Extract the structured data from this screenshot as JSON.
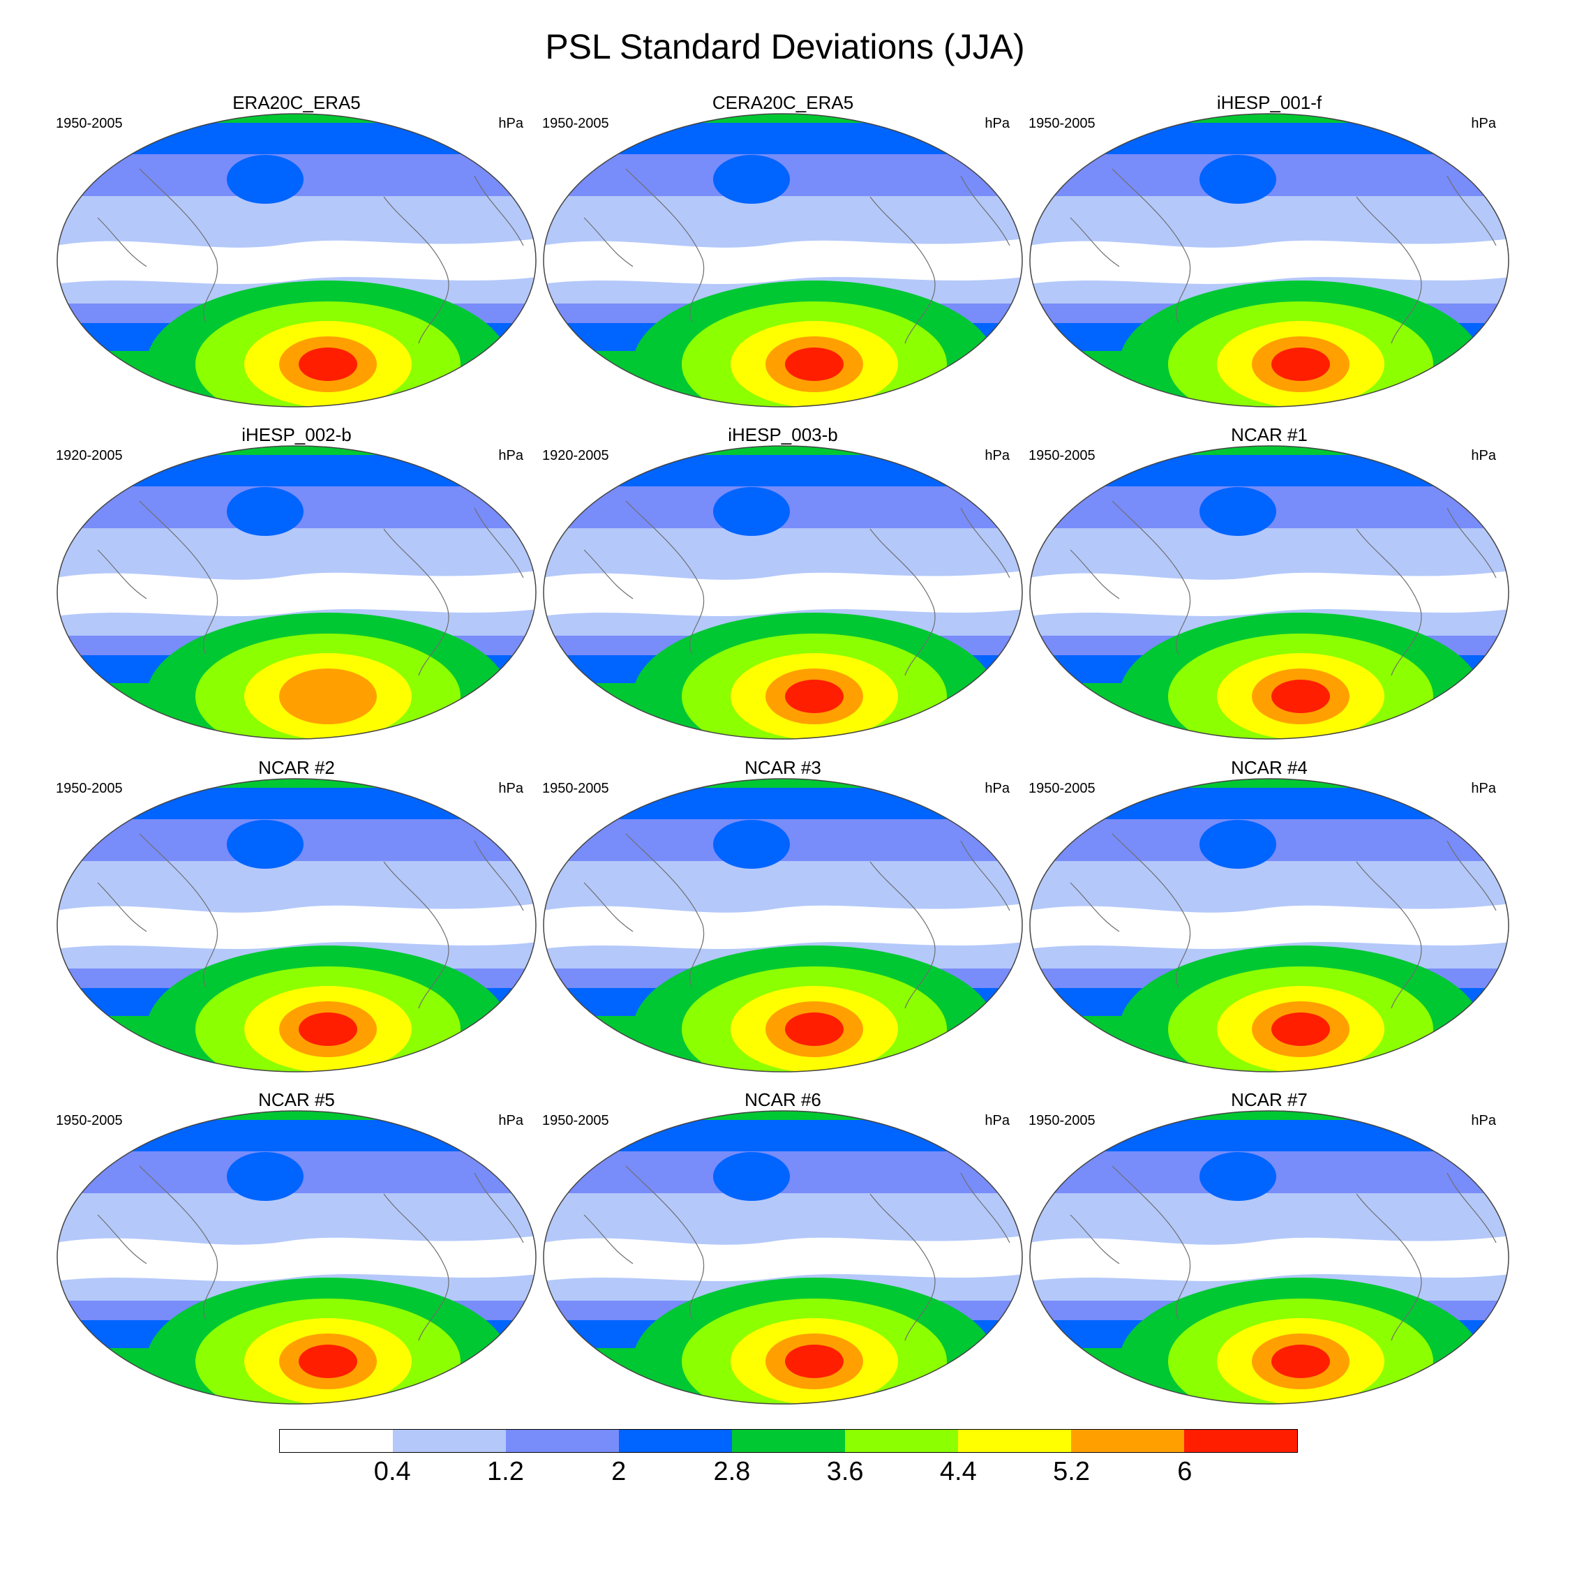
{
  "figure": {
    "title": "PSL Standard Deviations (JJA)"
  },
  "panels": [
    {
      "title": "ERA20C_ERA5",
      "period": "1950-2005",
      "units": "hPa",
      "peak_level": 9
    },
    {
      "title": "CERA20C_ERA5",
      "period": "1950-2005",
      "units": "hPa",
      "peak_level": 9
    },
    {
      "title": "iHESP_001-f",
      "period": "1950-2005",
      "units": "hPa",
      "peak_level": 9
    },
    {
      "title": "iHESP_002-b",
      "period": "1920-2005",
      "units": "hPa",
      "peak_level": 7
    },
    {
      "title": "iHESP_003-b",
      "period": "1920-2005",
      "units": "hPa",
      "peak_level": 8
    },
    {
      "title": "NCAR #1",
      "period": "1950-2005",
      "units": "hPa",
      "peak_level": 9
    },
    {
      "title": "NCAR #2",
      "period": "1950-2005",
      "units": "hPa",
      "peak_level": 9
    },
    {
      "title": "NCAR #3",
      "period": "1950-2005",
      "units": "hPa",
      "peak_level": 9
    },
    {
      "title": "NCAR #4",
      "period": "1950-2005",
      "units": "hPa",
      "peak_level": 9
    },
    {
      "title": "NCAR #5",
      "period": "1950-2005",
      "units": "hPa",
      "peak_level": 9
    },
    {
      "title": "NCAR #6",
      "period": "1950-2005",
      "units": "hPa",
      "peak_level": 9
    },
    {
      "title": "NCAR #7",
      "period": "1950-2005",
      "units": "hPa",
      "peak_level": 9
    }
  ],
  "colorbar": {
    "colors": [
      "#ffffff",
      "#b4c8fa",
      "#788cfa",
      "#0064ff",
      "#00c832",
      "#8cff00",
      "#ffff00",
      "#ffa000",
      "#ff1e00"
    ],
    "labels": [
      "0.4",
      "1.2",
      "2",
      "2.8",
      "3.6",
      "4.4",
      "5.2",
      "6"
    ]
  }
}
